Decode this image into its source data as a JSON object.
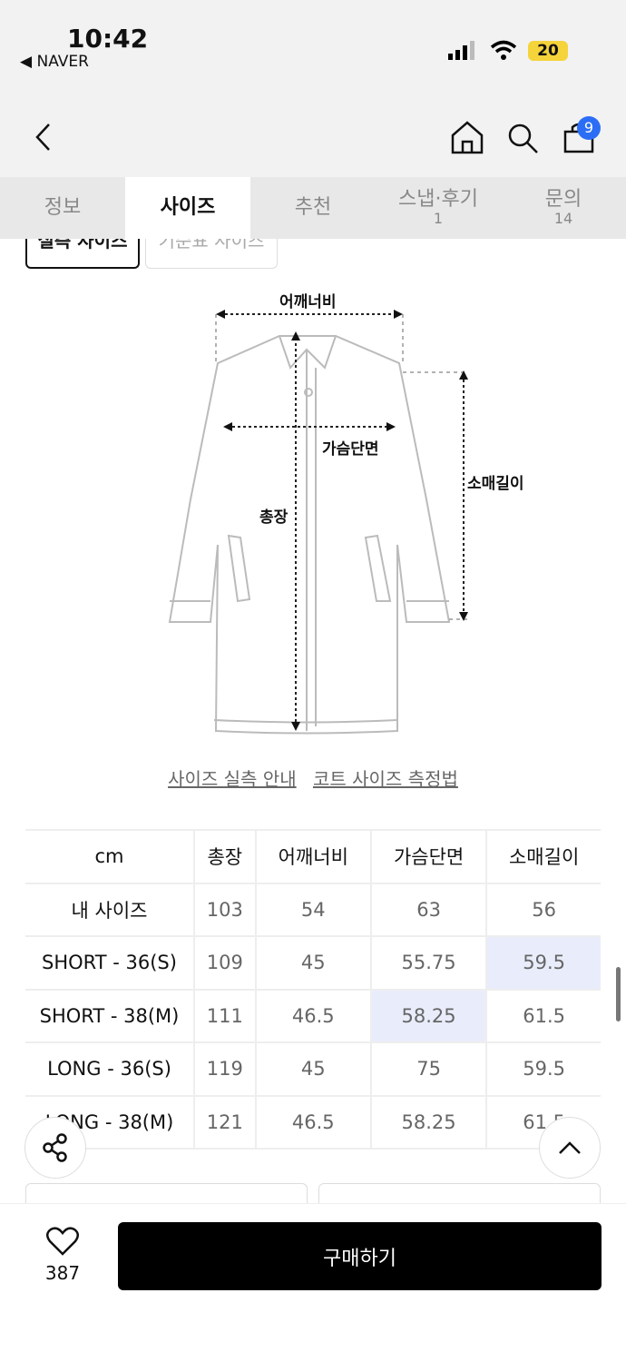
{
  "status": {
    "time": "10:42",
    "back_app": "◀ NAVER",
    "battery": "20"
  },
  "header": {
    "cart_count": "9"
  },
  "tabs": [
    {
      "label": "정보"
    },
    {
      "label": "사이즈"
    },
    {
      "label": "추천"
    },
    {
      "label": "스냅·후기",
      "count": "1"
    },
    {
      "label": "문의",
      "count": "14"
    }
  ],
  "segments": {
    "measured": "실측 사이즈",
    "standard": "기준표 사이즈"
  },
  "diagram": {
    "shoulder": "어깨너비",
    "chest": "가슴단면",
    "length": "총장",
    "sleeve": "소매길이"
  },
  "links": {
    "guide": "사이즈 실측 안내",
    "method": "코트 사이즈 측정법"
  },
  "table": {
    "headers": [
      "cm",
      "총장",
      "어깨너비",
      "가슴단면",
      "소매길이"
    ],
    "rows": [
      [
        "내 사이즈",
        "103",
        "54",
        "63",
        "56"
      ],
      [
        "SHORT - 36(S)",
        "109",
        "45",
        "55.75",
        "59.5"
      ],
      [
        "SHORT - 38(M)",
        "111",
        "46.5",
        "58.25",
        "61.5"
      ],
      [
        "LONG - 36(S)",
        "119",
        "45",
        "75",
        "59.5"
      ],
      [
        "LONG - 38(M)",
        "121",
        "46.5",
        "58.25",
        "61.5"
      ]
    ]
  },
  "bottom": {
    "like_count": "387",
    "buy_label": "구매하기"
  },
  "colors": {
    "highlight": "#e9edfb",
    "badge": "#2b6ef5"
  }
}
